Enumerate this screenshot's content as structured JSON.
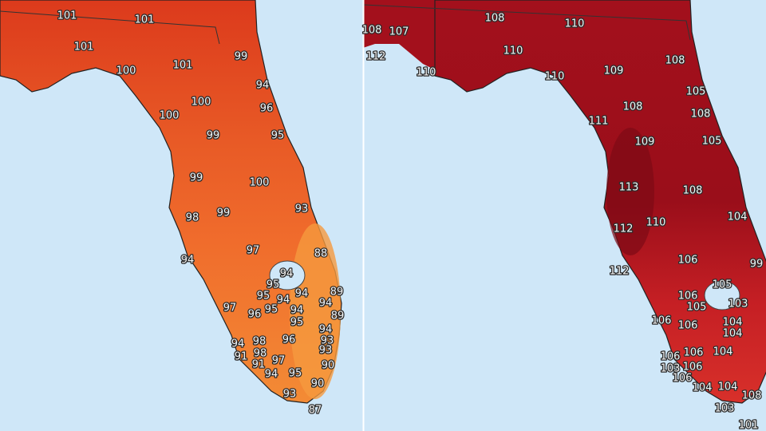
{
  "maps": [
    {
      "labels": [
        101,
        101,
        101,
        101,
        99,
        100,
        94,
        100,
        96,
        100,
        99,
        95,
        99,
        100,
        93,
        98,
        99,
        97,
        88,
        94,
        94,
        95,
        89,
        95,
        94,
        94,
        94,
        97,
        95,
        94,
        89,
        96,
        95,
        94,
        96,
        93,
        94,
        98,
        93,
        91,
        98,
        97,
        90,
        91,
        94,
        95,
        90,
        93,
        87
      ]
    },
    {
      "labels": [
        108,
        107,
        108,
        110,
        112,
        110,
        110,
        110,
        109,
        108,
        105,
        108,
        108,
        111,
        109,
        105,
        113,
        108,
        104,
        110,
        112,
        106,
        112,
        99,
        105,
        106,
        105,
        103,
        106,
        106,
        104,
        104,
        104,
        106,
        106,
        103,
        106,
        106,
        104,
        104,
        108,
        103,
        101
      ]
    }
  ]
}
